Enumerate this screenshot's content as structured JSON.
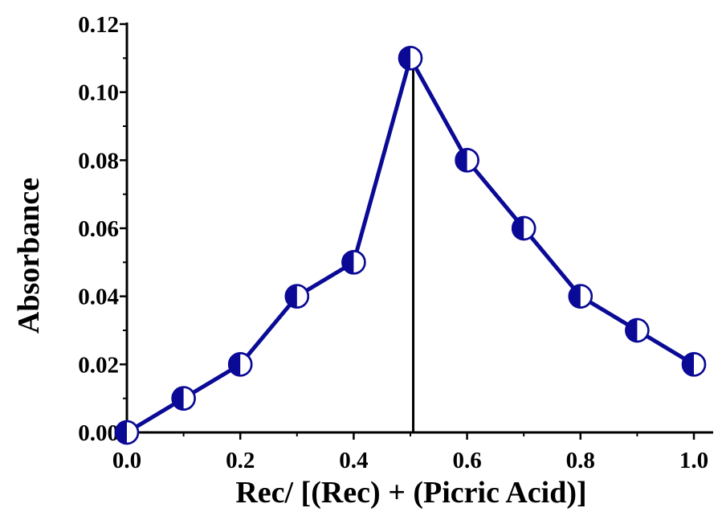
{
  "chart_data": {
    "type": "line",
    "xlabel": "Rec/ [(Rec) + (Picric Acid)]",
    "ylabel": "Absorbance",
    "xlim": [
      0.0,
      1.0
    ],
    "ylim": [
      0.0,
      0.12
    ],
    "x_ticks": [
      "0.0",
      "0.2",
      "0.4",
      "0.6",
      "0.8",
      "1.0"
    ],
    "y_ticks": [
      "0.00",
      "0.02",
      "0.04",
      "0.06",
      "0.08",
      "0.10",
      "0.12"
    ],
    "series": [
      {
        "x": [
          0.0,
          0.1,
          0.2,
          0.3,
          0.4,
          0.5,
          0.6,
          0.7,
          0.8,
          0.9,
          1.0
        ],
        "y": [
          0.0,
          0.01,
          0.02,
          0.04,
          0.05,
          0.11,
          0.08,
          0.06,
          0.04,
          0.03,
          0.02
        ]
      }
    ],
    "vertical_line_x": 0.505,
    "grid": false,
    "line_color": "#0a0a96",
    "marker_style": "half-filled-circle"
  }
}
